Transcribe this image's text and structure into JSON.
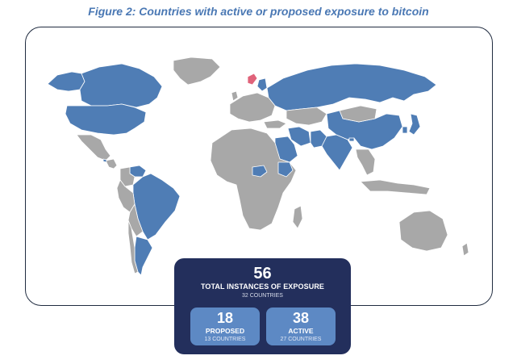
{
  "figure": {
    "title": "Figure 2: Countries with active or proposed exposure to bitcoin"
  },
  "colors": {
    "exposed": "#4f7db5",
    "not_exposed": "#a8a8a8",
    "border": "#ffffff",
    "panel_bg": "#232f5c",
    "card_bg": "#5d89c4",
    "title": "#4a78b4",
    "highlight": "#e0637a"
  },
  "legend_panel": {
    "total_value": "56",
    "total_label": "TOTAL INSTANCES OF EXPOSURE",
    "total_countries": "32 COUNTRIES",
    "proposed": {
      "value": "18",
      "label": "PROPOSED",
      "countries": "13 COUNTRIES"
    },
    "active": {
      "value": "38",
      "label": "ACTIVE",
      "countries": "27 COUNTRIES"
    }
  },
  "regions": [
    {
      "name": "Alaska",
      "exposure": "exposed"
    },
    {
      "name": "Canada",
      "exposure": "exposed"
    },
    {
      "name": "United States",
      "exposure": "exposed"
    },
    {
      "name": "Greenland",
      "exposure": "none"
    },
    {
      "name": "Mexico",
      "exposure": "none"
    },
    {
      "name": "Central America",
      "exposure": "none"
    },
    {
      "name": "El Salvador",
      "exposure": "exposed"
    },
    {
      "name": "Venezuela",
      "exposure": "exposed"
    },
    {
      "name": "Colombia",
      "exposure": "none"
    },
    {
      "name": "Brazil",
      "exposure": "exposed"
    },
    {
      "name": "Peru",
      "exposure": "none"
    },
    {
      "name": "Bolivia",
      "exposure": "none"
    },
    {
      "name": "Argentina",
      "exposure": "exposed"
    },
    {
      "name": "Chile",
      "exposure": "none"
    },
    {
      "name": "Russia",
      "exposure": "exposed"
    },
    {
      "name": "Norway",
      "exposure": "highlight"
    },
    {
      "name": "Finland",
      "exposure": "exposed"
    },
    {
      "name": "Europe",
      "exposure": "none"
    },
    {
      "name": "Kazakhstan",
      "exposure": "none"
    },
    {
      "name": "China",
      "exposure": "exposed"
    },
    {
      "name": "Mongolia",
      "exposure": "none"
    },
    {
      "name": "India",
      "exposure": "exposed"
    },
    {
      "name": "Iran",
      "exposure": "exposed"
    },
    {
      "name": "Pakistan",
      "exposure": "exposed"
    },
    {
      "name": "Saudi Arabia",
      "exposure": "exposed"
    },
    {
      "name": "Turkey",
      "exposure": "none"
    },
    {
      "name": "Japan",
      "exposure": "exposed"
    },
    {
      "name": "South Korea",
      "exposure": "exposed"
    },
    {
      "name": "Bhutan",
      "exposure": "exposed"
    },
    {
      "name": "Southeast Asia",
      "exposure": "none"
    },
    {
      "name": "Indonesia",
      "exposure": "none"
    },
    {
      "name": "Africa",
      "exposure": "none"
    },
    {
      "name": "Central African Republic",
      "exposure": "exposed"
    },
    {
      "name": "Ethiopia",
      "exposure": "exposed"
    },
    {
      "name": "Madagascar",
      "exposure": "none"
    },
    {
      "name": "Australia",
      "exposure": "none"
    },
    {
      "name": "New Zealand",
      "exposure": "none"
    },
    {
      "name": "UK",
      "exposure": "none"
    }
  ]
}
